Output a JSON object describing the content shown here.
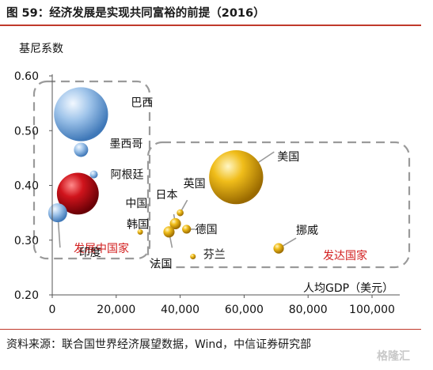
{
  "figure": {
    "title": "图 59：经济发展是实现共同富裕的前提（2016）",
    "source": "资料来源：联合国世界经济展望数据，Wind，中信证券研究部",
    "watermark": "格隆汇"
  },
  "chart_data": {
    "type": "scatter",
    "variant": "bubble",
    "xlabel": "人均GDP（美元）",
    "ylabel": "基尼系数",
    "xlim": [
      0,
      100000
    ],
    "ylim": [
      0.2,
      0.6
    ],
    "x_ticks": [
      "0",
      "20,000",
      "40,000",
      "60,000",
      "80,000",
      "100,000"
    ],
    "y_ticks": [
      "0.60",
      "0.50",
      "0.40",
      "0.30",
      "0.20"
    ],
    "grid": false,
    "colors": {
      "developing_blue": "#7aaee0",
      "china_red": "#c8141e",
      "developed_gold": "#e2a812",
      "group_border": "#9a9a9a",
      "group_label": "#d21e1e",
      "rule": "#c0392b"
    },
    "groups": [
      {
        "name": "发展中国家",
        "members": [
          "巴西",
          "墨西哥",
          "阿根廷",
          "中国",
          "印度"
        ]
      },
      {
        "name": "发达国家",
        "members": [
          "美国",
          "英国",
          "日本",
          "韩国",
          "德国",
          "法国",
          "芬兰",
          "挪威"
        ]
      }
    ],
    "points": [
      {
        "name": "巴西",
        "x": 9000,
        "y": 0.53,
        "size": 18.7,
        "group": "发展中国家"
      },
      {
        "name": "墨西哥",
        "x": 9000,
        "y": 0.465,
        "size": 1.3,
        "group": "发展中国家"
      },
      {
        "name": "阿根廷",
        "x": 13000,
        "y": 0.42,
        "size": 0.4,
        "group": "发展中国家"
      },
      {
        "name": "中国",
        "x": 8000,
        "y": 0.385,
        "size": 11.2,
        "group": "发展中国家"
      },
      {
        "name": "印度",
        "x": 1700,
        "y": 0.35,
        "size": 2.3,
        "group": "发展中国家"
      },
      {
        "name": "美国",
        "x": 57500,
        "y": 0.415,
        "size": 18.7,
        "group": "发达国家"
      },
      {
        "name": "英国",
        "x": 40000,
        "y": 0.35,
        "size": 0.3,
        "group": "发达国家"
      },
      {
        "name": "日本",
        "x": 38500,
        "y": 0.33,
        "size": 0.8,
        "group": "发达国家"
      },
      {
        "name": "韩国",
        "x": 27500,
        "y": 0.315,
        "size": 0.2,
        "group": "发达国家"
      },
      {
        "name": "德国",
        "x": 42000,
        "y": 0.32,
        "size": 0.5,
        "group": "发达国家"
      },
      {
        "name": "法国",
        "x": 36500,
        "y": 0.315,
        "size": 0.8,
        "group": "发达国家"
      },
      {
        "name": "芬兰",
        "x": 44000,
        "y": 0.27,
        "size": 0.2,
        "group": "发达国家"
      },
      {
        "name": "挪威",
        "x": 70800,
        "y": 0.285,
        "size": 0.7,
        "group": "发达国家"
      }
    ]
  }
}
